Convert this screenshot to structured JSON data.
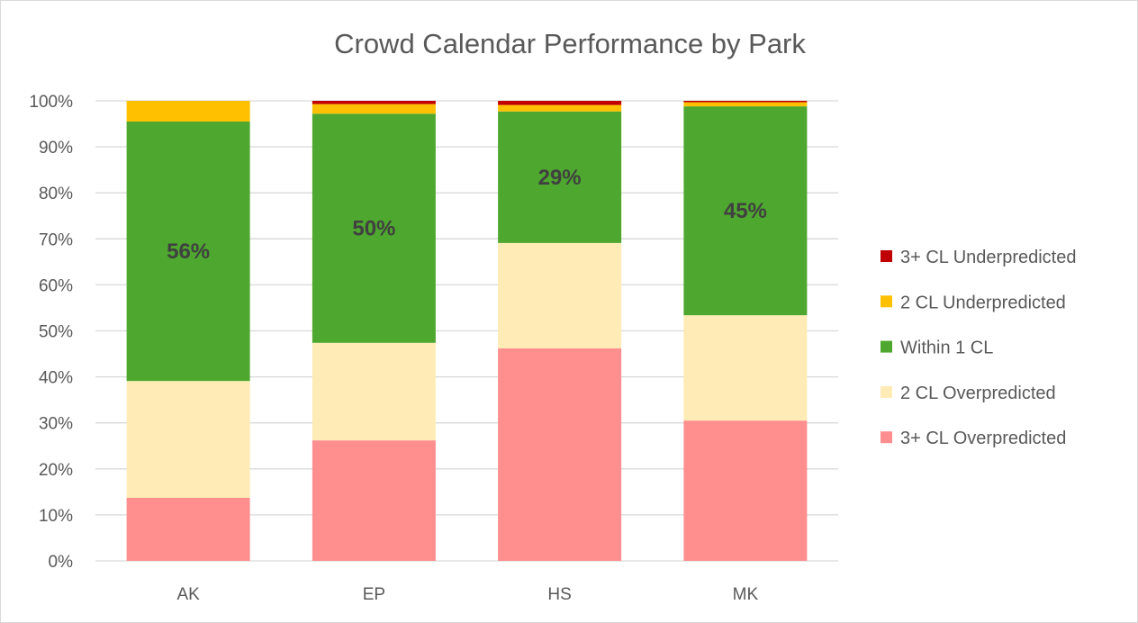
{
  "chart_data": {
    "type": "bar",
    "stacked": true,
    "title": "Crowd Calendar Performance by Park",
    "xlabel": "",
    "ylabel": "",
    "ylim": [
      0,
      100
    ],
    "y_ticks": [
      "0%",
      "10%",
      "20%",
      "30%",
      "40%",
      "50%",
      "60%",
      "70%",
      "80%",
      "90%",
      "100%"
    ],
    "categories": [
      "AK",
      "EP",
      "HS",
      "MK"
    ],
    "series": [
      {
        "name": "3+ CL Overpredicted",
        "color": "#FF8F8F",
        "values": [
          13.7,
          26.2,
          46.2,
          30.5
        ]
      },
      {
        "name": "2 CL Overpredicted",
        "color": "#FFEBB5",
        "values": [
          25.4,
          21.2,
          22.9,
          22.9
        ]
      },
      {
        "name": "Within 1 CL",
        "color": "#4EA72E",
        "values": [
          56.4,
          49.8,
          28.6,
          45.4
        ]
      },
      {
        "name": "2 CL Underpredicted",
        "color": "#FFC000",
        "values": [
          4.5,
          2.1,
          1.4,
          0.9
        ]
      },
      {
        "name": "3+ CL Underpredicted",
        "color": "#C00000",
        "values": [
          0,
          0.7,
          0.9,
          0.3
        ]
      }
    ],
    "data_labels": {
      "series": "Within 1 CL",
      "labels": [
        "56%",
        "50%",
        "29%",
        "45%"
      ]
    },
    "legend_position": "right",
    "legend_order": [
      "3+ CL Underpredicted",
      "2 CL Underpredicted",
      "Within 1 CL",
      "2 CL Overpredicted",
      "3+ CL Overpredicted"
    ],
    "grid": true
  }
}
